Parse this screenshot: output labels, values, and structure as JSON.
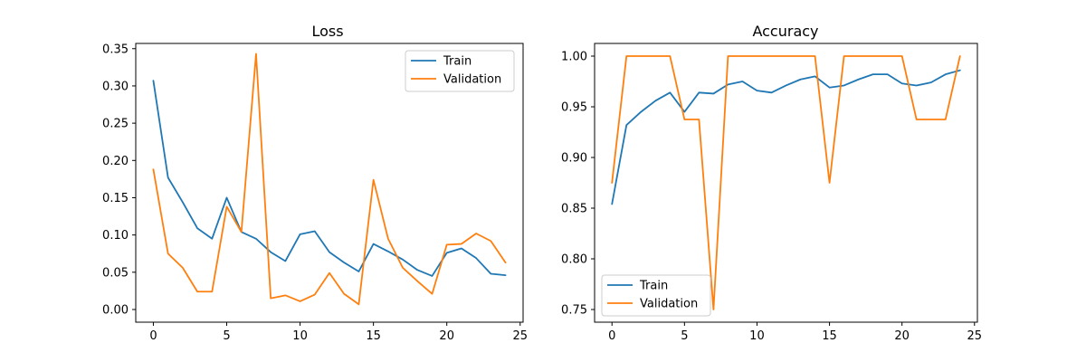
{
  "chart_data": [
    {
      "type": "line",
      "title": "Loss",
      "xlabel": "",
      "ylabel": "",
      "xlim": [
        -1.2,
        25.2
      ],
      "ylim": [
        -0.017,
        0.357
      ],
      "xticks": [
        0,
        5,
        10,
        15,
        20,
        25
      ],
      "yticks": [
        0.0,
        0.05,
        0.1,
        0.15,
        0.2,
        0.25,
        0.3,
        0.35
      ],
      "xtick_labels": [
        "0",
        "5",
        "10",
        "15",
        "20",
        "25"
      ],
      "ytick_labels": [
        "0.00",
        "0.05",
        "0.10",
        "0.15",
        "0.20",
        "0.25",
        "0.30",
        "0.35"
      ],
      "grid": false,
      "legend_position": "upper right",
      "x": [
        0,
        1,
        2,
        3,
        4,
        5,
        6,
        7,
        8,
        9,
        10,
        11,
        12,
        13,
        14,
        15,
        16,
        17,
        18,
        19,
        20,
        21,
        22,
        23,
        24
      ],
      "series": [
        {
          "name": "Train",
          "color": "#1f77b4",
          "values": [
            0.307,
            0.177,
            0.144,
            0.109,
            0.095,
            0.15,
            0.104,
            0.095,
            0.077,
            0.065,
            0.101,
            0.105,
            0.077,
            0.063,
            0.051,
            0.088,
            0.078,
            0.067,
            0.053,
            0.045,
            0.076,
            0.082,
            0.069,
            0.048,
            0.046
          ]
        },
        {
          "name": "Validation",
          "color": "#ff7f0e",
          "values": [
            0.188,
            0.075,
            0.056,
            0.024,
            0.024,
            0.138,
            0.104,
            0.343,
            0.015,
            0.019,
            0.011,
            0.02,
            0.049,
            0.021,
            0.007,
            0.174,
            0.095,
            0.056,
            0.038,
            0.021,
            0.087,
            0.088,
            0.102,
            0.092,
            0.063
          ]
        }
      ]
    },
    {
      "type": "line",
      "title": "Accuracy",
      "xlabel": "",
      "ylabel": "",
      "xlim": [
        -1.2,
        25.2
      ],
      "ylim": [
        0.7375,
        1.0125
      ],
      "xticks": [
        0,
        5,
        10,
        15,
        20,
        25
      ],
      "yticks": [
        0.75,
        0.8,
        0.85,
        0.9,
        0.95,
        1.0
      ],
      "xtick_labels": [
        "0",
        "5",
        "10",
        "15",
        "20",
        "25"
      ],
      "ytick_labels": [
        "0.75",
        "0.80",
        "0.85",
        "0.90",
        "0.95",
        "1.00"
      ],
      "grid": false,
      "legend_position": "lower left",
      "x": [
        0,
        1,
        2,
        3,
        4,
        5,
        6,
        7,
        8,
        9,
        10,
        11,
        12,
        13,
        14,
        15,
        16,
        17,
        18,
        19,
        20,
        21,
        22,
        23,
        24
      ],
      "series": [
        {
          "name": "Train",
          "color": "#1f77b4",
          "values": [
            0.854,
            0.932,
            0.945,
            0.956,
            0.964,
            0.945,
            0.964,
            0.963,
            0.972,
            0.975,
            0.966,
            0.964,
            0.971,
            0.977,
            0.98,
            0.969,
            0.971,
            0.977,
            0.982,
            0.982,
            0.973,
            0.971,
            0.974,
            0.982,
            0.986
          ]
        },
        {
          "name": "Validation",
          "color": "#ff7f0e",
          "values": [
            0.875,
            1.0,
            1.0,
            1.0,
            1.0,
            0.9375,
            0.9375,
            0.75,
            1.0,
            1.0,
            1.0,
            1.0,
            1.0,
            1.0,
            1.0,
            0.875,
            1.0,
            1.0,
            1.0,
            1.0,
            1.0,
            0.9375,
            0.9375,
            0.9375,
            1.0
          ]
        }
      ]
    }
  ]
}
